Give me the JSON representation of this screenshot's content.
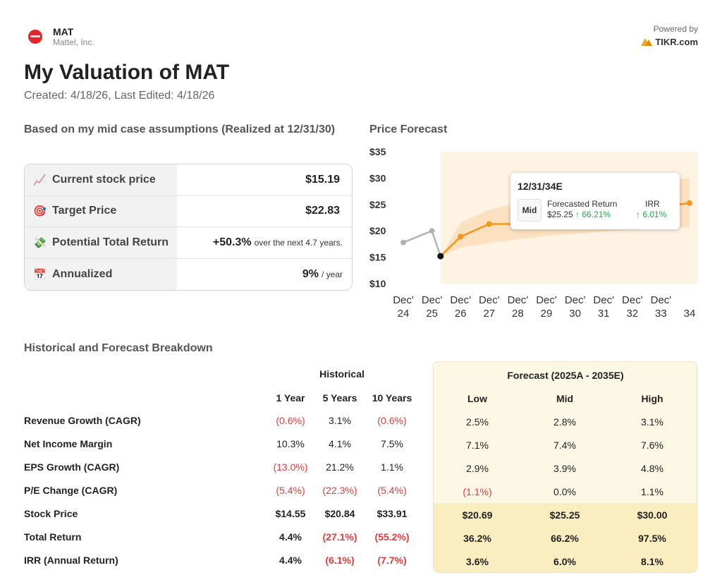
{
  "header": {
    "ticker": "MAT",
    "company": "Mattel, Inc.",
    "powered_by": "Powered by",
    "brand": "TIKR.com",
    "logo_icon": "mattel-logo"
  },
  "title": "My Valuation of MAT",
  "dates": "Created: 4/18/26, Last Edited: 4/18/26",
  "summary": {
    "heading": "Based on my mid case assumptions (Realized at 12/31/30)",
    "rows": [
      {
        "emoji": "📈",
        "icon": "chart-up-icon",
        "label": "Current stock price",
        "value": "$15.19",
        "suffix": ""
      },
      {
        "emoji": "🎯",
        "icon": "target-icon",
        "label": "Target Price",
        "value": "$22.83",
        "suffix": ""
      },
      {
        "emoji": "💸",
        "icon": "money-icon",
        "label": "Potential Total Return",
        "value": "+50.3%",
        "suffix": "over the next 4.7 years."
      },
      {
        "emoji": "📅",
        "icon": "calendar-icon",
        "label": "Annualized",
        "value": "9%",
        "suffix": "/ year"
      }
    ]
  },
  "price_forecast": {
    "heading": "Price Forecast",
    "tooltip": {
      "date": "12/31/34E",
      "case": "Mid",
      "forecast_label": "Forecasted Return",
      "forecast_price": "$25.25",
      "forecast_return": "↑ 66.21%",
      "irr_label": "IRR",
      "irr_value": "↑ 6.01%"
    }
  },
  "chart_data": {
    "type": "line",
    "title": "Price Forecast",
    "y_ticks": [
      "$35",
      "$30",
      "$25",
      "$20",
      "$15",
      "$10"
    ],
    "ylim": [
      10,
      35
    ],
    "x_ticks": [
      [
        "Dec'",
        "24"
      ],
      [
        "Dec'",
        "25"
      ],
      [
        "Dec'",
        "26"
      ],
      [
        "Dec'",
        "27"
      ],
      [
        "Dec'",
        "28"
      ],
      [
        "Dec'",
        "29"
      ],
      [
        "Dec'",
        "30"
      ],
      [
        "Dec'",
        "31"
      ],
      [
        "Dec'",
        "32"
      ],
      [
        "Dec'",
        "33"
      ],
      [
        "",
        "34"
      ]
    ],
    "xlim": [
      2024,
      2034
    ],
    "series": [
      {
        "kind": "historical",
        "color": "#b3b3b3",
        "points": [
          [
            2024,
            17.8
          ],
          [
            2025,
            20.0
          ],
          [
            2025.3,
            15.2
          ]
        ]
      },
      {
        "kind": "forecast-mid",
        "color": "#f5961d",
        "points": [
          [
            2025.3,
            15.2
          ],
          [
            2026,
            18.9
          ],
          [
            2027,
            21.3
          ],
          [
            2028,
            21.3
          ],
          [
            2029,
            22.0
          ],
          [
            2030,
            22.8
          ],
          [
            2031,
            23.4
          ],
          [
            2032,
            24.0
          ],
          [
            2033,
            24.6
          ],
          [
            2034,
            25.25
          ]
        ]
      }
    ],
    "band": {
      "color": "#fbd8b0",
      "low": [
        [
          2025.3,
          15.2
        ],
        [
          2026,
          16.8
        ],
        [
          2027,
          17.7
        ],
        [
          2028,
          18.4
        ],
        [
          2029,
          19.0
        ],
        [
          2030,
          19.5
        ],
        [
          2031,
          19.9
        ],
        [
          2032,
          20.2
        ],
        [
          2033,
          20.4
        ],
        [
          2034,
          20.69
        ]
      ],
      "high": [
        [
          2025.3,
          15.2
        ],
        [
          2026,
          21.5
        ],
        [
          2027,
          24.0
        ],
        [
          2028,
          25.3
        ],
        [
          2029,
          26.5
        ],
        [
          2030,
          27.3
        ],
        [
          2031,
          28.0
        ],
        [
          2032,
          28.8
        ],
        [
          2033,
          29.5
        ],
        [
          2034,
          30.0
        ]
      ]
    },
    "forecast_region_start": 2025.3,
    "current_point": [
      2025.3,
      15.2
    ],
    "colors": {
      "region": "#fff3e3",
      "band": "#fbd8b0",
      "forecast": "#f5961d",
      "historical": "#b3b3b3"
    }
  },
  "breakdown": {
    "heading": "Historical and Forecast Breakdown",
    "historical_label": "Historical",
    "forecast_label": "Forecast (2025A - 2035E)",
    "hist_cols": [
      "1 Year",
      "5 Years",
      "10 Years"
    ],
    "fc_cols": [
      "Low",
      "Mid",
      "High"
    ],
    "rows": [
      {
        "label": "Revenue Growth (CAGR)",
        "hist": [
          "(0.6%)",
          "3.1%",
          "(0.6%)"
        ],
        "fc": [
          "2.5%",
          "2.8%",
          "3.1%"
        ],
        "bold": false
      },
      {
        "label": "Net Income Margin",
        "hist": [
          "10.3%",
          "4.1%",
          "7.5%"
        ],
        "fc": [
          "7.1%",
          "7.4%",
          "7.6%"
        ],
        "bold": false
      },
      {
        "label": "EPS Growth (CAGR)",
        "hist": [
          "(13.0%)",
          "21.2%",
          "1.1%"
        ],
        "fc": [
          "2.9%",
          "3.9%",
          "4.8%"
        ],
        "bold": false
      },
      {
        "label": "P/E Change (CAGR)",
        "hist": [
          "(5.4%)",
          "(22.3%)",
          "(5.4%)"
        ],
        "fc": [
          "(1.1%)",
          "0.0%",
          "1.1%"
        ],
        "bold": false
      },
      {
        "label": "Stock Price",
        "hist": [
          "$14.55",
          "$20.84",
          "$33.91"
        ],
        "fc": [
          "$20.69",
          "$25.25",
          "$30.00"
        ],
        "bold": true
      },
      {
        "label": "Total Return",
        "hist": [
          "4.4%",
          "(27.1%)",
          "(55.2%)"
        ],
        "fc": [
          "36.2%",
          "66.2%",
          "97.5%"
        ],
        "bold": true
      },
      {
        "label": "IRR (Annual Return)",
        "hist": [
          "4.4%",
          "(6.1%)",
          "(7.7%)"
        ],
        "fc": [
          "3.6%",
          "6.0%",
          "8.1%"
        ],
        "bold": true
      }
    ]
  }
}
